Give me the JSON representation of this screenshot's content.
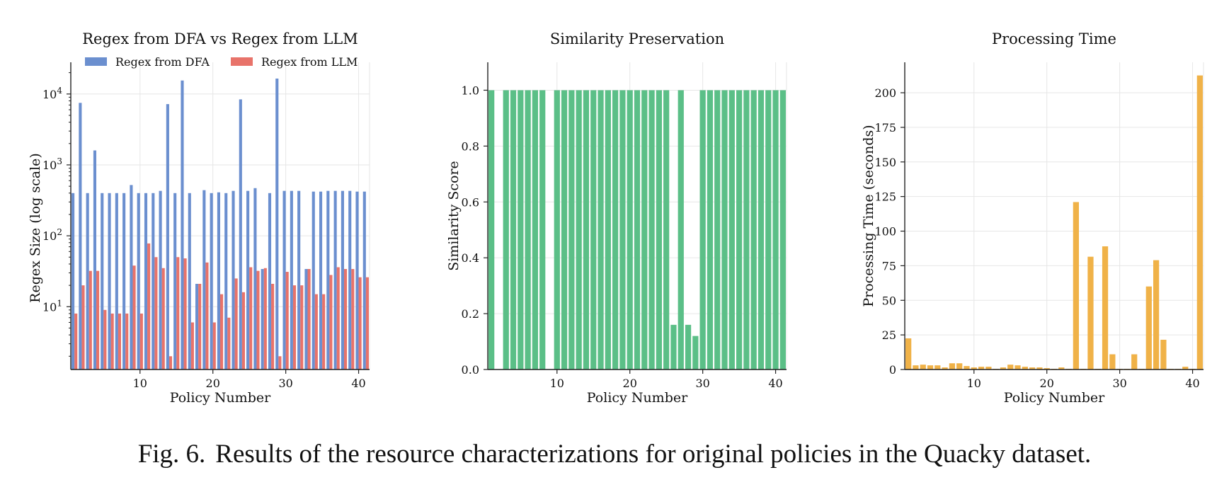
{
  "caption": {
    "label": "Fig. 6.",
    "text": "Results of the resource characterizations for original policies in the Quacky dataset."
  },
  "colors": {
    "dfa": "#6b8fcf",
    "llm": "#e8736a",
    "similarity": "#5bbf87",
    "time": "#f0b248",
    "grid": "#e6e6e6"
  },
  "chart_data": [
    {
      "type": "bar",
      "title": "Regex from DFA vs Regex from LLM",
      "xlabel": "Policy Number",
      "ylabel": "Regex Size (log scale)",
      "yscale": "log",
      "ylim": [
        1.3,
        28000
      ],
      "xlim": [
        0.5,
        41.5
      ],
      "xticks": [
        10,
        20,
        30,
        40
      ],
      "yticks": [
        {
          "value": 10,
          "base": "10",
          "exp": "1"
        },
        {
          "value": 100,
          "base": "10",
          "exp": "2"
        },
        {
          "value": 1000,
          "base": "10",
          "exp": "3"
        },
        {
          "value": 10000,
          "base": "10",
          "exp": "4"
        }
      ],
      "legend_position": "top",
      "categories": [
        1,
        2,
        3,
        4,
        5,
        6,
        7,
        8,
        9,
        10,
        11,
        12,
        13,
        14,
        15,
        16,
        17,
        18,
        19,
        20,
        21,
        22,
        23,
        24,
        25,
        26,
        27,
        28,
        29,
        30,
        31,
        32,
        33,
        34,
        35,
        36,
        37,
        38,
        39,
        40,
        41
      ],
      "series": [
        {
          "name": "Regex from DFA",
          "color": "#6b8fcf",
          "values": [
            400,
            7500,
            400,
            1600,
            400,
            400,
            400,
            400,
            520,
            400,
            400,
            400,
            430,
            7200,
            400,
            15500,
            400,
            21,
            440,
            400,
            410,
            400,
            430,
            8400,
            430,
            470,
            34,
            400,
            16500,
            430,
            430,
            430,
            34,
            420,
            420,
            430,
            430,
            430,
            430,
            420,
            420
          ]
        },
        {
          "name": "Regex from LLM",
          "color": "#e8736a",
          "values": [
            8,
            20,
            32,
            32,
            9,
            8,
            8,
            8,
            38,
            8,
            78,
            50,
            35,
            2,
            50,
            48,
            6,
            21,
            42,
            6,
            15,
            7,
            25,
            16,
            36,
            32,
            35,
            21,
            2,
            31,
            20,
            20,
            34,
            15,
            15,
            28,
            36,
            34,
            34,
            26,
            26
          ]
        }
      ]
    },
    {
      "type": "bar",
      "title": "Similarity Preservation",
      "xlabel": "Policy Number",
      "ylabel": "Similarity Score",
      "ylim": [
        0,
        1.1
      ],
      "xlim": [
        0.5,
        41.5
      ],
      "xticks": [
        10,
        20,
        30,
        40
      ],
      "yticks": [
        0.0,
        0.2,
        0.4,
        0.6,
        0.8,
        1.0
      ],
      "ytick_labels": [
        "0.0",
        "0.2",
        "0.4",
        "0.6",
        "0.8",
        "1.0"
      ],
      "categories": [
        1,
        2,
        3,
        4,
        5,
        6,
        7,
        8,
        9,
        10,
        11,
        12,
        13,
        14,
        15,
        16,
        17,
        18,
        19,
        20,
        21,
        22,
        23,
        24,
        25,
        26,
        27,
        28,
        29,
        30,
        31,
        32,
        33,
        34,
        35,
        36,
        37,
        38,
        39,
        40,
        41
      ],
      "values": [
        1,
        0,
        1,
        1,
        1,
        1,
        1,
        1,
        0,
        1,
        1,
        1,
        1,
        1,
        1,
        1,
        1,
        1,
        1,
        1,
        1,
        1,
        1,
        1,
        1,
        0.16,
        1,
        0.16,
        0.12,
        1,
        1,
        1,
        1,
        1,
        1,
        1,
        1,
        1,
        1,
        1,
        1
      ],
      "color": "#5bbf87"
    },
    {
      "type": "bar",
      "title": "Processing Time",
      "xlabel": "Policy Number",
      "ylabel": "Processing Time (seconds)",
      "ylim": [
        0,
        222
      ],
      "xlim": [
        0.5,
        41.5
      ],
      "xticks": [
        10,
        20,
        30,
        40
      ],
      "yticks": [
        0,
        25,
        50,
        75,
        100,
        125,
        150,
        175,
        200
      ],
      "ytick_labels": [
        "0",
        "25",
        "50",
        "75",
        "100",
        "125",
        "150",
        "175",
        "200"
      ],
      "categories": [
        1,
        2,
        3,
        4,
        5,
        6,
        7,
        8,
        9,
        10,
        11,
        12,
        13,
        14,
        15,
        16,
        17,
        18,
        19,
        20,
        21,
        22,
        23,
        24,
        25,
        26,
        27,
        28,
        29,
        30,
        31,
        32,
        33,
        34,
        35,
        36,
        37,
        38,
        39,
        40,
        41
      ],
      "values": [
        22.5,
        3,
        3.5,
        3,
        3,
        1.5,
        4.5,
        4.5,
        2.5,
        1.5,
        2,
        2,
        0.5,
        1.5,
        3.5,
        3,
        2,
        1.5,
        1.5,
        1,
        0.5,
        1.5,
        0.5,
        121,
        0.5,
        81.5,
        0.5,
        89,
        11,
        0.5,
        0.5,
        11,
        0.5,
        60,
        79,
        21.5,
        0.5,
        0.5,
        2,
        0.5,
        212.5
      ],
      "color": "#f0b248"
    }
  ]
}
